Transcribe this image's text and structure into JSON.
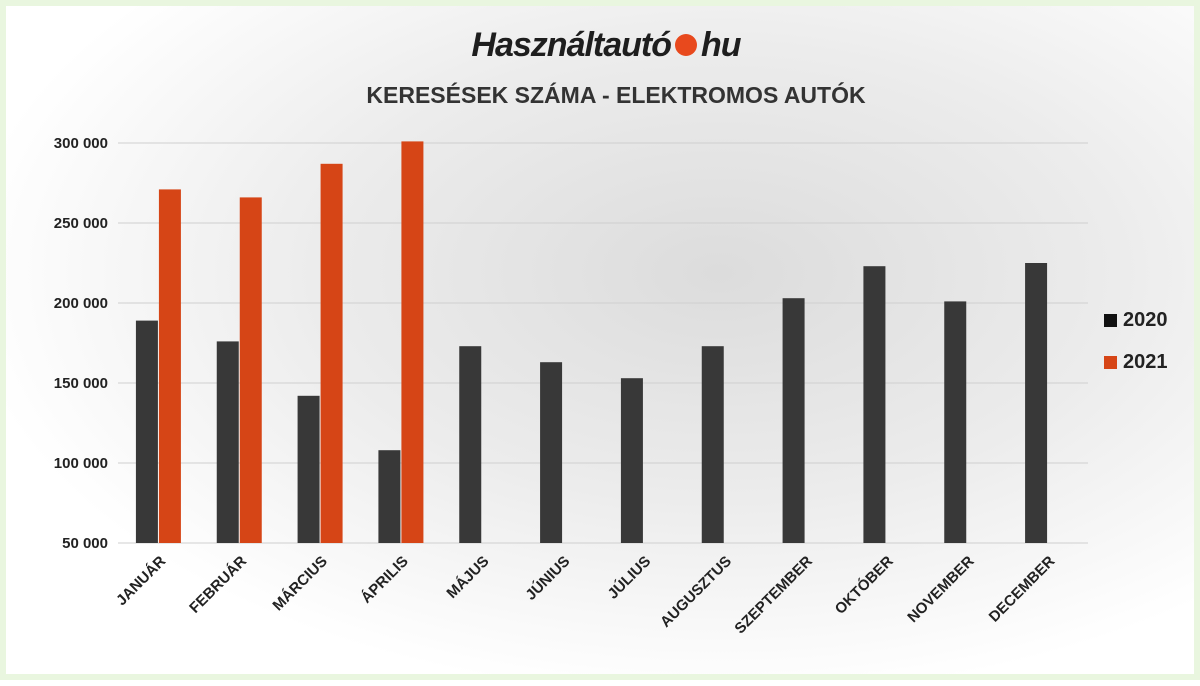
{
  "logo": {
    "left": "Használtautó",
    "right": "hu"
  },
  "chart_data": {
    "type": "bar",
    "title": "KERESÉSEK SZÁMA - ELEKTROMOS AUTÓK",
    "xlabel": "",
    "ylabel": "",
    "categories": [
      "JANUÁR",
      "FEBRUÁR",
      "MÁRCIUS",
      "ÁPRILIS",
      "MÁJUS",
      "JÚNIUS",
      "JÚLIUS",
      "AUGUSZTUS",
      "SZEPTEMBER",
      "OKTÓBER",
      "NOVEMBER",
      "DECEMBER"
    ],
    "series": [
      {
        "name": "2020",
        "color": "#383838",
        "values": [
          189000,
          176000,
          142000,
          108000,
          173000,
          163000,
          153000,
          173000,
          203000,
          223000,
          201000,
          225000
        ]
      },
      {
        "name": "2021",
        "color": "#d64516",
        "values": [
          271000,
          266000,
          287000,
          301000,
          null,
          null,
          null,
          null,
          null,
          null,
          null,
          null
        ]
      }
    ],
    "ylim": [
      50000,
      300000
    ],
    "yticks": [
      50000,
      100000,
      150000,
      200000,
      250000,
      300000
    ],
    "ytick_labels": [
      "50 000",
      "100 000",
      "150 000",
      "200 000",
      "250 000",
      "300 000"
    ],
    "grid": true,
    "legend_position": "right"
  }
}
